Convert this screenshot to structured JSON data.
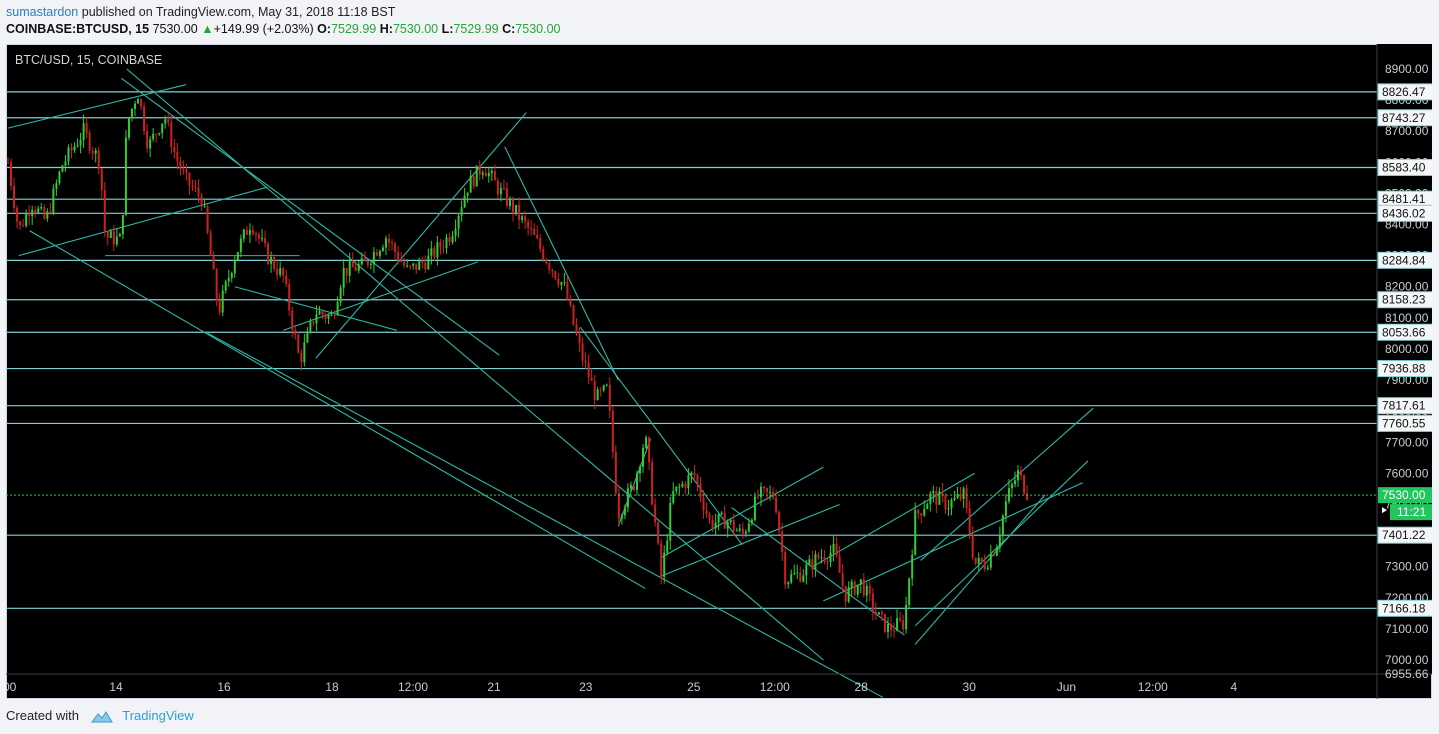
{
  "header": {
    "author": "sumastardon",
    "published_text": "published on TradingView.com, May 31, 2018 11:18 BST",
    "symbol": "COINBASE:BTCUSD, 15",
    "last": "7530.00",
    "change": "+149.99 (+2.03%)",
    "open_label": "O:",
    "open": "7529.99",
    "high_label": "H:",
    "high": "7530.00",
    "low_label": "L:",
    "low": "7529.99",
    "close_label": "C:",
    "close": "7530.00"
  },
  "footer": {
    "created_with": "Created with",
    "brand": "TradingView"
  },
  "colors": {
    "background": "#000000",
    "level_line": "#7fd1d6",
    "trend_line": "#2bb9a6",
    "up_candle": "#33cc33",
    "down_candle": "#cc2222",
    "price_line": "#2ecc40",
    "axis_panel": "#000000"
  },
  "chart_data": {
    "type": "line",
    "title": "BTC/USD, 15, COINBASE",
    "ylim": [
      6950,
      9000
    ],
    "x_ticks": [
      {
        "label": ":00",
        "x": 0
      },
      {
        "label": "14",
        "x": 1
      },
      {
        "label": "16",
        "x": 2
      },
      {
        "label": "18",
        "x": 3
      },
      {
        "label": "12:00",
        "x": 3.75
      },
      {
        "label": "21",
        "x": 4.5
      },
      {
        "label": "23",
        "x": 5.35
      },
      {
        "label": "25",
        "x": 6.35
      },
      {
        "label": "12:00",
        "x": 7.1
      },
      {
        "label": "28",
        "x": 7.9
      },
      {
        "label": "30",
        "x": 8.9
      },
      {
        "label": "Jun",
        "x": 9.8
      },
      {
        "label": "12:00",
        "x": 10.6
      },
      {
        "label": "4",
        "x": 11.35
      }
    ],
    "y_ticks": [
      8900,
      8800,
      8700,
      8600,
      8500,
      8400,
      8300,
      8200,
      8100,
      8000,
      7900,
      7800,
      7700,
      7600,
      7500,
      7400,
      7300,
      7200,
      7100,
      7000
    ],
    "y_tick_labels": [
      "8900.00",
      "8800.00",
      "8700.00",
      "8600.00",
      "8500.00",
      "8400.00",
      "8300.00",
      "8200.00",
      "8100.00",
      "8000.00",
      "7900.00",
      "7800.00",
      "7700.00",
      "7600.00",
      "7500.00",
      "7400.00",
      "7300.00",
      "7200.00",
      "7100.00",
      "7000.00"
    ],
    "horizontal_levels": [
      {
        "label": "8826.47",
        "value": 8826.47
      },
      {
        "label": "8743.27",
        "value": 8743.27
      },
      {
        "label": "8583.40",
        "value": 8583.4
      },
      {
        "label": "8481.41",
        "value": 8481.41
      },
      {
        "label": "8436.02",
        "value": 8436.02
      },
      {
        "label": "8284.84",
        "value": 8284.84
      },
      {
        "label": "8158.23",
        "value": 8158.23
      },
      {
        "label": "8053.66",
        "value": 8053.66
      },
      {
        "label": "7936.88",
        "value": 7936.88
      },
      {
        "label": "7817.61",
        "value": 7817.61
      },
      {
        "label": "7760.55",
        "value": 7760.55
      },
      {
        "label": "7401.22",
        "value": 7401.22
      },
      {
        "label": "7166.18",
        "value": 7166.18
      }
    ],
    "bottom_partial_label": "6955.66",
    "current_price": {
      "label": "7530.00",
      "value": 7530.0,
      "countdown": "11:21"
    },
    "price_path": [
      [
        0.0,
        8600
      ],
      [
        0.1,
        8380
      ],
      [
        0.22,
        8470
      ],
      [
        0.35,
        8410
      ],
      [
        0.5,
        8590
      ],
      [
        0.7,
        8700
      ],
      [
        0.85,
        8600
      ],
      [
        0.9,
        8360
      ],
      [
        1.05,
        8350
      ],
      [
        1.1,
        8720
      ],
      [
        1.2,
        8830
      ],
      [
        1.3,
        8650
      ],
      [
        1.45,
        8750
      ],
      [
        1.55,
        8620
      ],
      [
        1.65,
        8540
      ],
      [
        1.8,
        8480
      ],
      [
        1.95,
        8120
      ],
      [
        2.1,
        8300
      ],
      [
        2.25,
        8410
      ],
      [
        2.4,
        8300
      ],
      [
        2.55,
        8230
      ],
      [
        2.7,
        7960
      ],
      [
        2.85,
        8120
      ],
      [
        3.0,
        8100
      ],
      [
        3.1,
        8250
      ],
      [
        3.3,
        8270
      ],
      [
        3.5,
        8360
      ],
      [
        3.7,
        8250
      ],
      [
        3.9,
        8290
      ],
      [
        4.1,
        8370
      ],
      [
        4.25,
        8520
      ],
      [
        4.4,
        8590
      ],
      [
        4.55,
        8510
      ],
      [
        4.7,
        8440
      ],
      [
        4.85,
        8370
      ],
      [
        5.0,
        8280
      ],
      [
        5.15,
        8200
      ],
      [
        5.3,
        7990
      ],
      [
        5.45,
        7840
      ],
      [
        5.55,
        7870
      ],
      [
        5.65,
        7470
      ],
      [
        5.8,
        7570
      ],
      [
        5.9,
        7720
      ],
      [
        6.05,
        7260
      ],
      [
        6.15,
        7530
      ],
      [
        6.35,
        7600
      ],
      [
        6.5,
        7440
      ],
      [
        6.65,
        7450
      ],
      [
        6.8,
        7400
      ],
      [
        6.95,
        7530
      ],
      [
        7.1,
        7530
      ],
      [
        7.2,
        7260
      ],
      [
        7.35,
        7280
      ],
      [
        7.5,
        7330
      ],
      [
        7.65,
        7350
      ],
      [
        7.75,
        7210
      ],
      [
        7.9,
        7250
      ],
      [
        8.05,
        7140
      ],
      [
        8.15,
        7100
      ],
      [
        8.3,
        7120
      ],
      [
        8.4,
        7460
      ],
      [
        8.55,
        7530
      ],
      [
        8.7,
        7500
      ],
      [
        8.85,
        7530
      ],
      [
        8.95,
        7310
      ],
      [
        9.05,
        7310
      ],
      [
        9.15,
        7370
      ],
      [
        9.25,
        7520
      ],
      [
        9.35,
        7600
      ],
      [
        9.45,
        7530
      ]
    ],
    "trend_lines": [
      [
        [
          0.0,
          8710
        ],
        [
          1.65,
          8850
        ]
      ],
      [
        [
          0.1,
          8300
        ],
        [
          2.4,
          8520
        ]
      ],
      [
        [
          0.9,
          8300
        ],
        [
          2.7,
          8300
        ]
      ],
      [
        [
          1.05,
          8870
        ],
        [
          4.55,
          7980
        ]
      ],
      [
        [
          1.1,
          8900
        ],
        [
          7.55,
          7000
        ]
      ],
      [
        [
          0.2,
          8380
        ],
        [
          5.9,
          7230
        ]
      ],
      [
        [
          1.85,
          8050
        ],
        [
          8.1,
          6880
        ]
      ],
      [
        [
          2.1,
          8200
        ],
        [
          3.6,
          8060
        ]
      ],
      [
        [
          2.85,
          7970
        ],
        [
          4.8,
          8760
        ]
      ],
      [
        [
          2.55,
          8060
        ],
        [
          4.35,
          8280
        ]
      ],
      [
        [
          4.6,
          8650
        ],
        [
          5.65,
          7900
        ]
      ],
      [
        [
          5.3,
          8070
        ],
        [
          6.8,
          7370
        ]
      ],
      [
        [
          5.65,
          7430
        ],
        [
          5.95,
          7710
        ]
      ],
      [
        [
          6.05,
          7270
        ],
        [
          7.7,
          7500
        ]
      ],
      [
        [
          6.05,
          7330
        ],
        [
          7.55,
          7620
        ]
      ],
      [
        [
          6.7,
          7490
        ],
        [
          8.3,
          7080
        ]
      ],
      [
        [
          7.45,
          7300
        ],
        [
          8.95,
          7600
        ]
      ],
      [
        [
          7.55,
          7190
        ],
        [
          9.95,
          7570
        ]
      ],
      [
        [
          8.4,
          7050
        ],
        [
          9.6,
          7530
        ]
      ],
      [
        [
          8.45,
          7320
        ],
        [
          10.05,
          7810
        ]
      ],
      [
        [
          8.4,
          7110
        ],
        [
          10.0,
          7640
        ]
      ]
    ]
  }
}
